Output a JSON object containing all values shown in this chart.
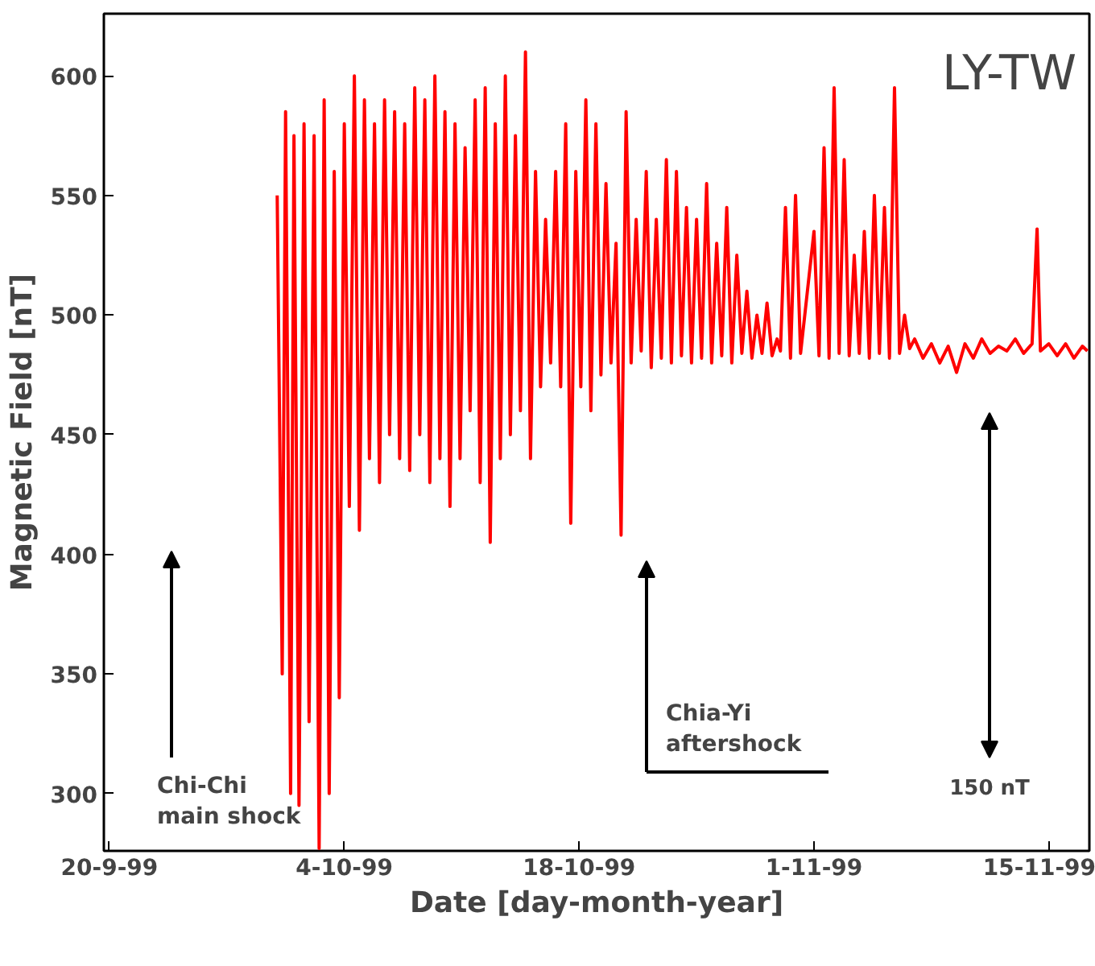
{
  "chart_data": {
    "type": "line",
    "xlabel": "Date [day-month-year]",
    "ylabel": "Magnetic Field [nT]",
    "xlim": [
      "1999-09-19T16:00",
      "1999-11-17T10:00"
    ],
    "ylim": [
      276,
      626
    ],
    "xticks": [
      {
        "value": "1999-09-20",
        "label": "20-9-99"
      },
      {
        "value": "1999-10-04",
        "label": "4-10-99"
      },
      {
        "value": "1999-10-18",
        "label": "18-10-99"
      },
      {
        "value": "1999-11-01",
        "label": "1-11-99"
      },
      {
        "value": "1999-11-15",
        "label": "15-11-99"
      }
    ],
    "yticks": [
      300,
      350,
      400,
      450,
      500,
      550,
      600
    ],
    "grid": false,
    "marker": "none",
    "line_style": "solid",
    "annotations": [
      "LY-TW",
      "Chi-Chi\nmain shock",
      "Chia-Yi\naftershock",
      "150 nT"
    ],
    "series": [
      {
        "color": "#ff0000",
        "x": [
          "1999-09-30T00:00",
          "1999-09-30T07:12",
          "1999-09-30T12:00",
          "1999-09-30T19:12",
          "1999-10-01T00:00",
          "1999-10-01T07:12",
          "1999-10-01T14:24",
          "1999-10-01T21:36",
          "1999-10-02T04:48",
          "1999-10-02T12:00",
          "1999-10-02T19:12",
          "1999-10-03T02:24",
          "1999-10-03T09:36",
          "1999-10-03T16:48",
          "1999-10-04T00:00",
          "1999-10-04T07:12",
          "1999-10-04T14:24",
          "1999-10-04T21:36",
          "1999-10-05T04:48",
          "1999-10-05T12:00",
          "1999-10-05T19:12",
          "1999-10-06T02:24",
          "1999-10-06T09:36",
          "1999-10-06T16:48",
          "1999-10-07T00:00",
          "1999-10-07T07:12",
          "1999-10-07T14:24",
          "1999-10-07T21:36",
          "1999-10-08T04:48",
          "1999-10-08T12:00",
          "1999-10-08T19:12",
          "1999-10-09T02:24",
          "1999-10-09T09:36",
          "1999-10-09T16:48",
          "1999-10-10T00:00",
          "1999-10-10T07:12",
          "1999-10-10T14:24",
          "1999-10-10T21:36",
          "1999-10-11T04:48",
          "1999-10-11T12:00",
          "1999-10-11T19:12",
          "1999-10-12T02:24",
          "1999-10-12T09:36",
          "1999-10-12T16:48",
          "1999-10-13T00:00",
          "1999-10-13T07:12",
          "1999-10-13T14:24",
          "1999-10-13T21:36",
          "1999-10-14T04:48",
          "1999-10-14T12:00",
          "1999-10-14T19:12",
          "1999-10-15T02:24",
          "1999-10-15T09:36",
          "1999-10-15T16:48",
          "1999-10-16T00:00",
          "1999-10-16T07:12",
          "1999-10-16T14:24",
          "1999-10-16T21:36",
          "1999-10-17T04:48",
          "1999-10-17T12:00",
          "1999-10-17T19:12",
          "1999-10-18T02:24",
          "1999-10-18T09:36",
          "1999-10-18T16:48",
          "1999-10-19T00:00",
          "1999-10-19T07:12",
          "1999-10-19T14:24",
          "1999-10-19T21:36",
          "1999-10-20T04:48",
          "1999-10-20T12:00",
          "1999-10-20T19:12",
          "1999-10-21T02:24",
          "1999-10-21T09:36",
          "1999-10-21T16:48",
          "1999-10-22T00:00",
          "1999-10-22T07:12",
          "1999-10-22T14:24",
          "1999-10-22T21:36",
          "1999-10-23T04:48",
          "1999-10-23T12:00",
          "1999-10-23T19:12",
          "1999-10-24T02:24",
          "1999-10-24T09:36",
          "1999-10-24T16:48",
          "1999-10-25T00:00",
          "1999-10-25T07:12",
          "1999-10-25T14:24",
          "1999-10-25T21:36",
          "1999-10-26T04:48",
          "1999-10-26T12:00",
          "1999-10-26T19:12",
          "1999-10-27T02:24",
          "1999-10-27T09:36",
          "1999-10-27T16:48",
          "1999-10-28T00:00",
          "1999-10-28T07:12",
          "1999-10-28T14:24",
          "1999-10-28T21:36",
          "1999-10-29T04:48",
          "1999-10-29T12:00",
          "1999-10-29T19:12",
          "1999-10-30T00:00",
          "1999-10-30T07:12",
          "1999-10-30T14:24",
          "1999-10-30T21:36",
          "1999-10-31T04:48",
          "1999-11-01T00:00",
          "1999-11-01T07:12",
          "1999-11-01T14:24",
          "1999-11-01T21:36",
          "1999-11-02T04:48",
          "1999-11-02T12:00",
          "1999-11-02T19:12",
          "1999-11-03T02:24",
          "1999-11-03T09:36",
          "1999-11-03T16:48",
          "1999-11-04T00:00",
          "1999-11-04T07:12",
          "1999-11-04T14:24",
          "1999-11-04T21:36",
          "1999-11-05T04:48",
          "1999-11-05T12:00",
          "1999-11-05T19:12",
          "1999-11-06T02:24",
          "1999-11-06T09:36",
          "1999-11-06T16:48",
          "1999-11-07T00:00",
          "1999-11-07T12:00",
          "1999-11-08T00:00",
          "1999-11-08T12:00",
          "1999-11-09T00:00",
          "1999-11-09T12:00",
          "1999-11-10T00:00",
          "1999-11-10T12:00",
          "1999-11-11T00:00",
          "1999-11-11T12:00",
          "1999-11-12T00:00",
          "1999-11-12T12:00",
          "1999-11-13T00:00",
          "1999-11-13T12:00",
          "1999-11-14T00:00",
          "1999-11-14T07:12",
          "1999-11-14T12:00",
          "1999-11-15T00:00",
          "1999-11-15T12:00",
          "1999-11-16T00:00",
          "1999-11-16T12:00",
          "1999-11-17T00:00",
          "1999-11-17T07:12"
        ],
        "values": [
          550,
          350,
          585,
          300,
          575,
          295,
          580,
          330,
          575,
          277,
          590,
          300,
          560,
          340,
          580,
          420,
          600,
          410,
          590,
          440,
          580,
          430,
          590,
          450,
          585,
          440,
          580,
          435,
          595,
          450,
          590,
          430,
          600,
          440,
          585,
          420,
          580,
          440,
          570,
          460,
          590,
          430,
          595,
          405,
          580,
          440,
          600,
          450,
          575,
          460,
          610,
          440,
          560,
          470,
          540,
          480,
          560,
          470,
          580,
          413,
          560,
          470,
          590,
          460,
          580,
          475,
          555,
          480,
          530,
          408,
          585,
          480,
          540,
          485,
          560,
          478,
          540,
          482,
          565,
          480,
          560,
          483,
          545,
          480,
          540,
          482,
          555,
          480,
          530,
          483,
          545,
          480,
          525,
          484,
          510,
          482,
          500,
          484,
          505,
          483,
          490,
          485,
          545,
          482,
          550,
          484,
          535,
          483,
          570,
          482,
          595,
          484,
          565,
          483,
          525,
          484,
          535,
          482,
          550,
          484,
          545,
          482,
          595,
          484,
          500,
          486,
          490,
          482,
          488,
          480,
          487,
          476,
          488,
          482,
          490,
          484,
          487,
          485,
          490,
          484,
          488,
          536,
          485,
          488,
          483,
          488,
          482,
          487,
          485
        ]
      }
    ]
  }
}
